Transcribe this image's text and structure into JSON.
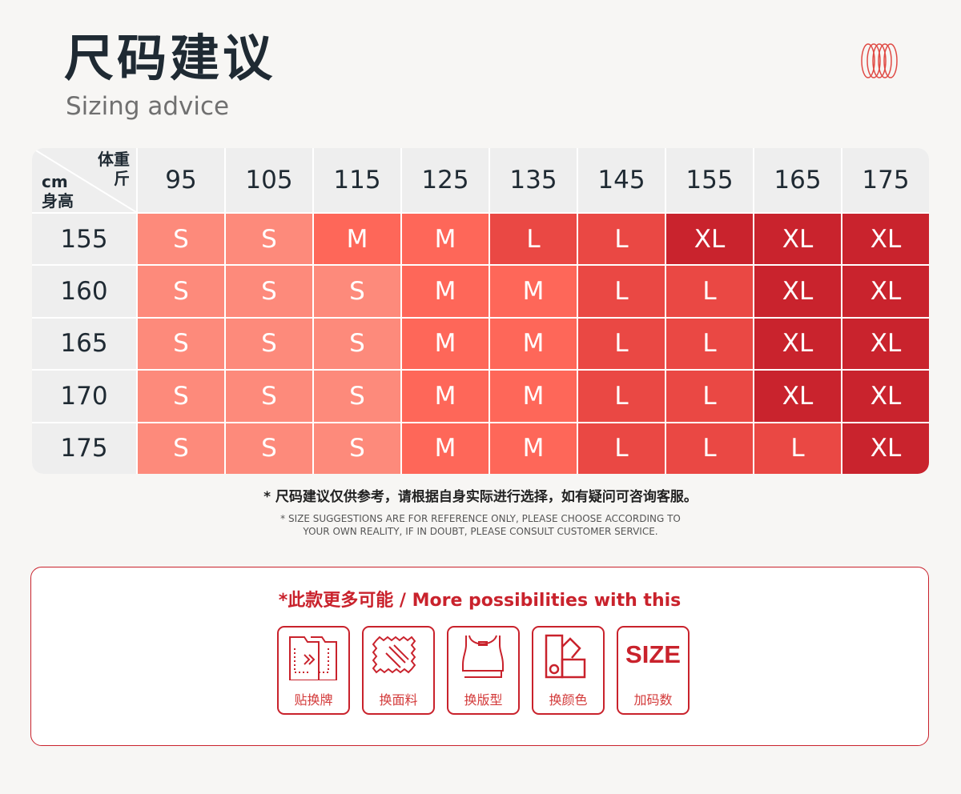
{
  "header": {
    "title": "尺码建议",
    "subtitle": "Sizing advice",
    "logo_icon": "red-rings-logo"
  },
  "table": {
    "corner": {
      "weight_label": "体重",
      "weight_unit": "斤",
      "height_unit": "cm",
      "height_label": "身高"
    },
    "weights": [
      "95",
      "105",
      "115",
      "125",
      "135",
      "145",
      "155",
      "165",
      "175"
    ],
    "rows": [
      {
        "height": "155",
        "sizes": [
          "S",
          "S",
          "M",
          "M",
          "L",
          "L",
          "XL",
          "XL",
          "XL"
        ]
      },
      {
        "height": "160",
        "sizes": [
          "S",
          "S",
          "S",
          "M",
          "M",
          "L",
          "L",
          "XL",
          "XL"
        ]
      },
      {
        "height": "165",
        "sizes": [
          "S",
          "S",
          "S",
          "M",
          "M",
          "L",
          "L",
          "XL",
          "XL"
        ]
      },
      {
        "height": "170",
        "sizes": [
          "S",
          "S",
          "S",
          "M",
          "M",
          "L",
          "L",
          "XL",
          "XL"
        ]
      },
      {
        "height": "175",
        "sizes": [
          "S",
          "S",
          "S",
          "M",
          "M",
          "L",
          "L",
          "L",
          "XL"
        ]
      }
    ],
    "colors": {
      "S": "#fd8a7b",
      "M": "#fe6759",
      "L": "#ea4844",
      "XL": "#c9232d"
    }
  },
  "notes": {
    "cn": "* 尺码建议仅供参考，请根据自身实际进行选择，如有疑问可咨询客服。",
    "en_line1": "* SIZE SUGGESTIONS ARE FOR REFERENCE ONLY, PLEASE CHOOSE ACCORDING TO",
    "en_line2": "YOUR OWN REALITY, IF IN DOUBT, PLEASE CONSULT CUSTOMER SERVICE."
  },
  "options": {
    "title": "*此款更多可能 / More possibilities with this",
    "items": [
      {
        "label": "贴换牌",
        "icon": "label-swap-icon"
      },
      {
        "label": "换面料",
        "icon": "fabric-icon"
      },
      {
        "label": "换版型",
        "icon": "tank-top-icon"
      },
      {
        "label": "换颜色",
        "icon": "color-swatch-icon"
      },
      {
        "label": "加码数",
        "icon": "size-text-icon",
        "icon_text": "SIZE"
      }
    ]
  }
}
